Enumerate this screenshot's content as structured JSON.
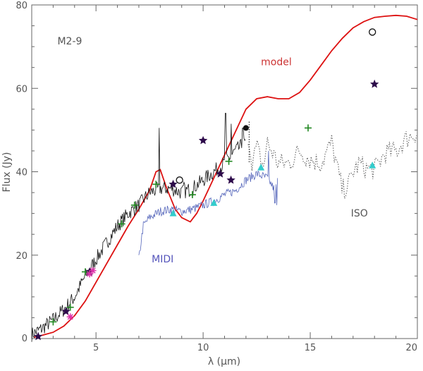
{
  "chart_data": {
    "type": "line",
    "title": "",
    "xlabel": "λ (μm)",
    "ylabel": "Flux (Jy)",
    "xlim": [
      2,
      20
    ],
    "ylim": [
      0,
      80
    ],
    "x_ticks": [
      5,
      10,
      15,
      20
    ],
    "y_ticks": [
      0,
      20,
      40,
      60,
      80
    ],
    "annotations": [
      {
        "text": "M2-9",
        "x": 3.2,
        "y": 70.5,
        "color": "#555555"
      },
      {
        "text": "model",
        "x": 12.7,
        "y": 65.5,
        "color": "#cc3333"
      },
      {
        "text": "MIDI",
        "x": 7.6,
        "y": 18.3,
        "color": "#5555bb"
      },
      {
        "text": "ISO",
        "x": 16.9,
        "y": 29.3,
        "color": "#555555"
      }
    ],
    "series": [
      {
        "kind": "model",
        "style": "line",
        "color": "#dd1111",
        "x": [
          2.1,
          2.5,
          3,
          3.5,
          4,
          4.5,
          5,
          5.5,
          6,
          6.5,
          7,
          7.5,
          7.8,
          8,
          8.3,
          8.7,
          9,
          9.4,
          9.7,
          10,
          10.5,
          11,
          11.5,
          12,
          12.5,
          13,
          13.5,
          14,
          14.5,
          15,
          15.5,
          16,
          16.5,
          17,
          17.5,
          18,
          18.5,
          19,
          19.5,
          20
        ],
        "y": [
          0.3,
          0.8,
          1.5,
          3,
          5.5,
          9,
          13.5,
          18,
          22.5,
          27,
          31,
          35.5,
          40,
          40.5,
          36,
          31,
          29,
          28,
          30,
          33,
          38.5,
          44,
          49.5,
          55,
          57.5,
          58,
          57.5,
          57.5,
          59,
          62,
          65.5,
          69,
          72,
          74.5,
          76,
          77,
          77.3,
          77.5,
          77.3,
          76.5
        ]
      },
      {
        "kind": "ground-spectrum",
        "style": "noisy",
        "color": "#111111",
        "x": [
          2,
          2.5,
          3,
          3.5,
          4,
          4.5,
          5,
          5.5,
          6,
          6.5,
          7,
          7.5,
          8,
          8.5,
          9,
          9.5,
          10,
          10.5,
          11,
          11.5,
          12
        ],
        "y": [
          1,
          2.5,
          4.5,
          7,
          10,
          15,
          19,
          23,
          27,
          30,
          32,
          35,
          36,
          36,
          35,
          36,
          38,
          40,
          42,
          45,
          47
        ],
        "noise": 1.8,
        "spikes": [
          [
            7.95,
            50.5
          ],
          [
            9.1,
            37.5
          ],
          [
            11.05,
            54
          ],
          [
            11.3,
            51.5
          ],
          [
            11.85,
            50.5
          ]
        ]
      },
      {
        "kind": "MIDI",
        "style": "noisy",
        "color": "#5566bb",
        "x": [
          7.0,
          7.2,
          7.5,
          8,
          8.5,
          9,
          9.5,
          10,
          10.5,
          11,
          11.5,
          12,
          12.5,
          13,
          13.3,
          13.5
        ],
        "y": [
          19,
          27,
          29,
          30.5,
          31,
          30.5,
          31,
          32,
          33,
          34.5,
          35.5,
          38,
          39.5,
          38.5,
          36,
          38
        ],
        "noise": 1.1,
        "spikes": [
          [
            13.05,
            45
          ],
          [
            13.35,
            32.5
          ],
          [
            13.45,
            32
          ]
        ]
      },
      {
        "kind": "ISO",
        "style": "dotted",
        "color": "#666666",
        "x": [
          12.1,
          12.3,
          12.5,
          12.8,
          13,
          13.5,
          14,
          14.5,
          15,
          15.5,
          16,
          16.3,
          16.5,
          16.8,
          17,
          17.3,
          17.5,
          18,
          18.5,
          19,
          19.5,
          20
        ],
        "y": [
          49,
          42,
          46,
          41,
          47,
          42,
          42,
          45,
          43,
          42,
          47,
          40,
          35.5,
          37,
          40,
          42,
          41,
          40.5,
          44.5,
          45,
          48,
          49.5
        ],
        "noise": 2.6
      },
      {
        "kind": "filled-stars",
        "style": "star",
        "color": "#2d0a4a",
        "x": [
          2.3,
          3.6,
          4.7,
          8.6,
          10.0,
          10.8,
          11.3,
          18.0
        ],
        "y": [
          0.5,
          6.5,
          16.0,
          37.0,
          47.5,
          39.5,
          38.0,
          61.0
        ]
      },
      {
        "kind": "plus",
        "style": "plus",
        "color": "#228822",
        "x": [
          3.0,
          3.8,
          4.5,
          6.2,
          6.8,
          7.8,
          9.5,
          11.2,
          14.9
        ],
        "y": [
          4.0,
          7.5,
          16.0,
          27.5,
          32.0,
          37.0,
          34.5,
          42.5,
          50.5
        ]
      },
      {
        "kind": "asterisks",
        "style": "asterisk",
        "color": "#dd33aa",
        "x": [
          3.8,
          4.7,
          4.85
        ],
        "y": [
          5.2,
          15.5,
          16.3
        ]
      },
      {
        "kind": "triangles",
        "style": "triangle",
        "color": "#33cccc",
        "x": [
          8.6,
          10.5,
          12.7,
          17.9
        ],
        "y": [
          30.0,
          32.5,
          41.0,
          41.5
        ]
      },
      {
        "kind": "open-circles",
        "style": "circle-open",
        "color": "#111111",
        "x": [
          8.9,
          17.9
        ],
        "y": [
          38.0,
          73.5
        ]
      },
      {
        "kind": "filled-circles",
        "style": "circle-filled",
        "color": "#111111",
        "x": [
          12.0
        ],
        "y": [
          50.5
        ]
      }
    ]
  }
}
